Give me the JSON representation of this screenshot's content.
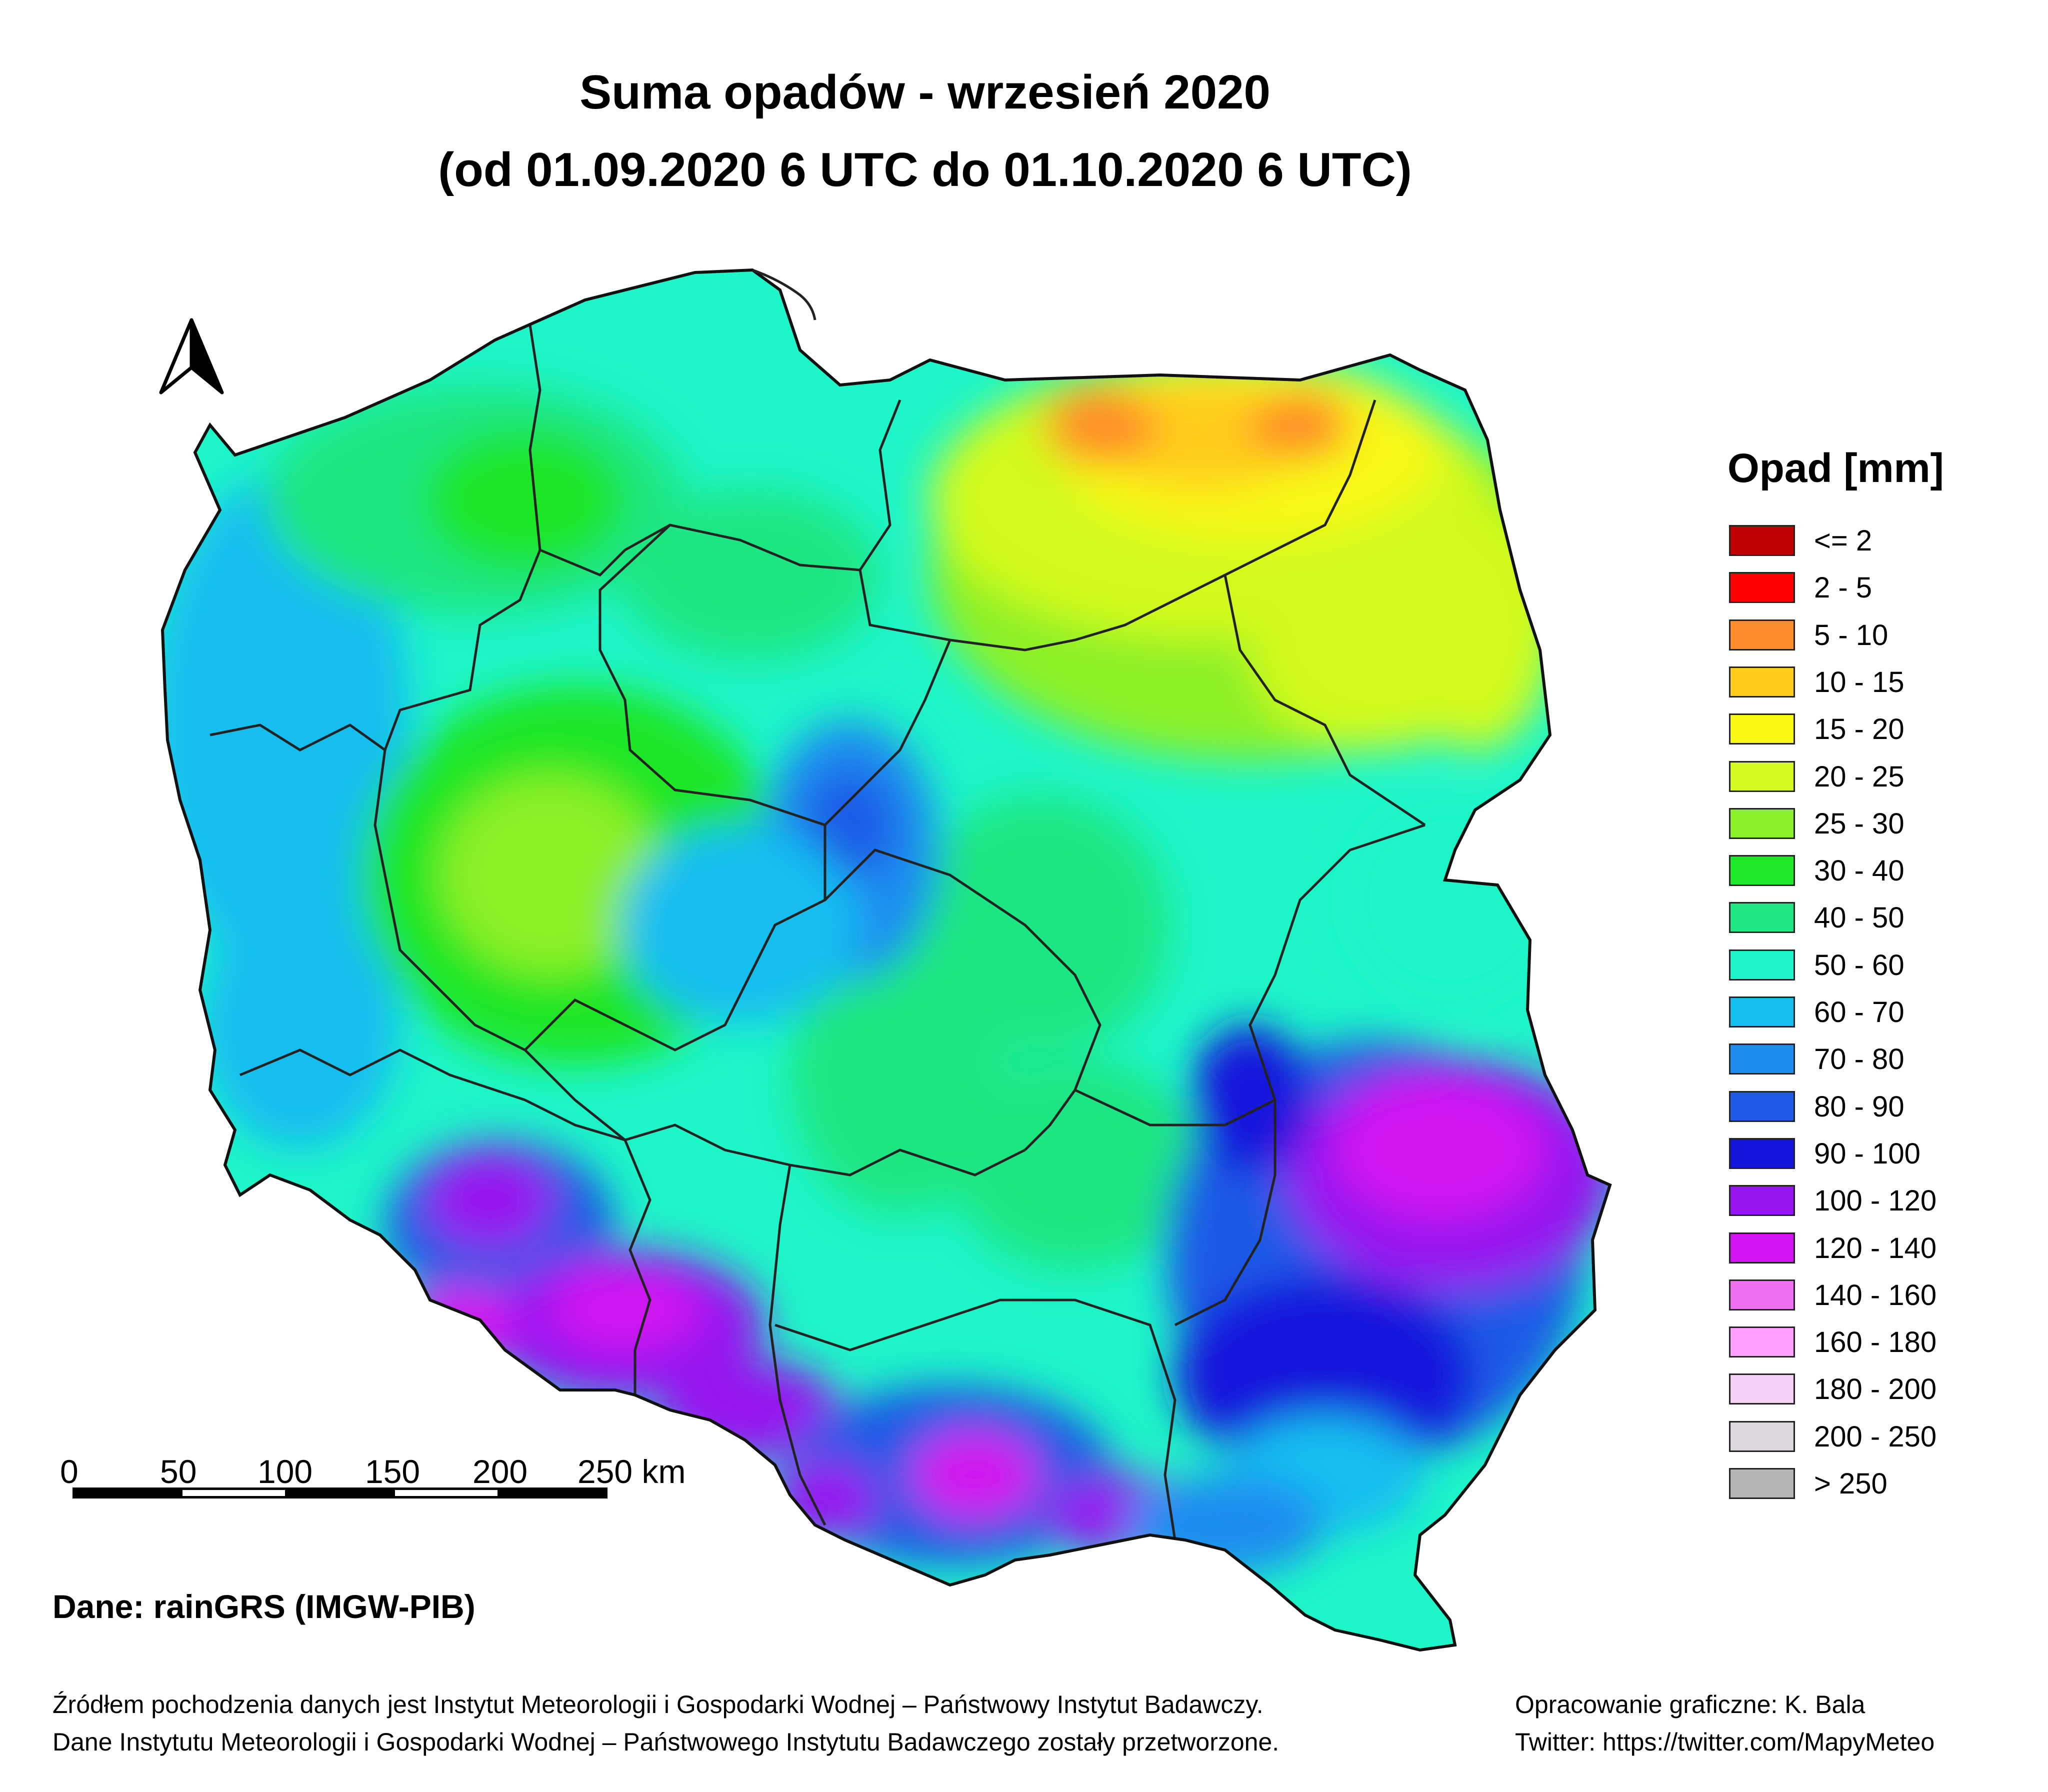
{
  "title_line1": "Suma opadów - wrzesień 2020",
  "title_line2": "(od 01.09.2020 6 UTC do 01.10.2020 6 UTC)",
  "legend": {
    "title": "Opad [mm]",
    "items": [
      {
        "label": "<= 2",
        "color": "#c00000"
      },
      {
        "label": "2 - 5",
        "color": "#ff0000"
      },
      {
        "label": "5 - 10",
        "color": "#ff8c28"
      },
      {
        "label": "10 - 15",
        "color": "#ffcc1c"
      },
      {
        "label": "15 - 20",
        "color": "#f8f814"
      },
      {
        "label": "20 - 25",
        "color": "#d2fa1e"
      },
      {
        "label": "25 - 30",
        "color": "#8cf028"
      },
      {
        "label": "30 - 40",
        "color": "#1ee628"
      },
      {
        "label": "40 - 50",
        "color": "#1ee682"
      },
      {
        "label": "50 - 60",
        "color": "#1ef5c8"
      },
      {
        "label": "60 - 70",
        "color": "#14bef0"
      },
      {
        "label": "70 - 80",
        "color": "#1e8cf0"
      },
      {
        "label": "80 - 90",
        "color": "#1e5ae6"
      },
      {
        "label": "90 - 100",
        "color": "#1414dc"
      },
      {
        "label": "100 - 120",
        "color": "#9614ef"
      },
      {
        "label": "120 - 140",
        "color": "#d214f0"
      },
      {
        "label": "140 - 160",
        "color": "#f06ef0"
      },
      {
        "label": "160 - 180",
        "color": "#ffa0ff"
      },
      {
        "label": "180 - 200",
        "color": "#f5d2f5"
      },
      {
        "label": "200 - 250",
        "color": "#dcd7dc"
      },
      {
        "label": "> 250",
        "color": "#b4b4b4"
      }
    ]
  },
  "scale_bar": {
    "labels": [
      "0",
      "50",
      "100",
      "150",
      "200",
      "250 km"
    ]
  },
  "north_arrow": "north-arrow-icon",
  "source": "Dane: rainGRS (IMGW-PIB)",
  "footer_left": [
    "Źródłem pochodzenia danych jest Instytut Meteorologii i Gospodarki Wodnej – Państwowy Instytut Badawczy.",
    "Dane Instytutu Meteorologii i Gospodarki Wodnej – Państwowego Instytutu Badawczego zostały przetworzone."
  ],
  "footer_right": [
    "Opracowanie graficzne: K. Bala",
    "Twitter: https://twitter.com/MapyMeteo"
  ]
}
